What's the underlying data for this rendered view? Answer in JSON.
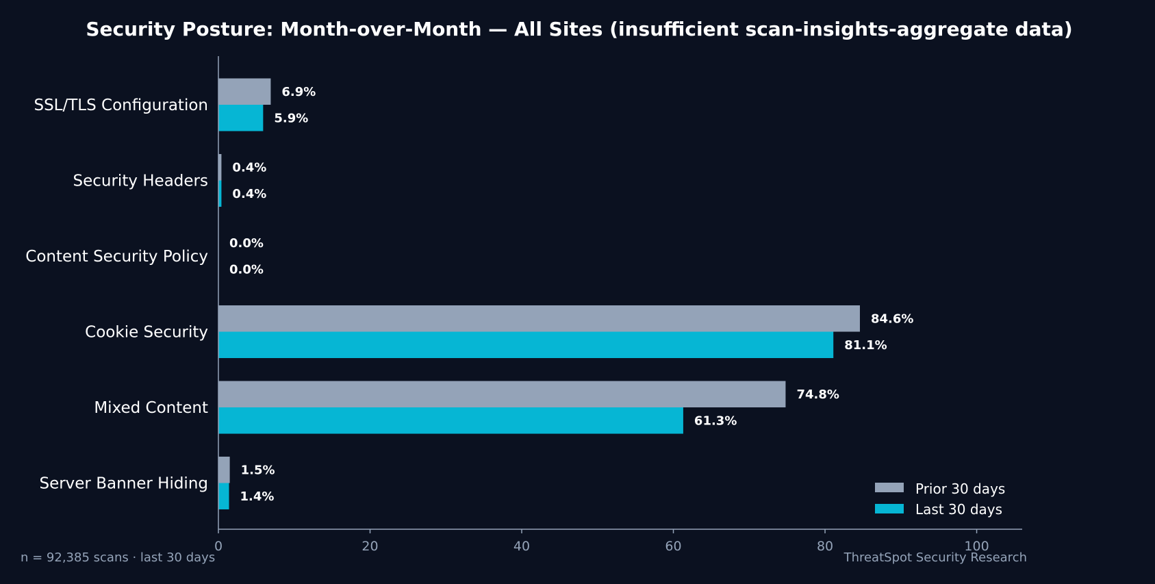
{
  "chart_data": {
    "type": "bar",
    "orientation": "horizontal",
    "title": "Security Posture: Month-over-Month — All Sites (insufficient scan-insights-aggregate data)",
    "categories": [
      "SSL/TLS Configuration",
      "Security Headers",
      "Content Security Policy",
      "Cookie Security",
      "Mixed Content",
      "Server Banner Hiding"
    ],
    "series": [
      {
        "name": "Prior 30 days",
        "color": "#94a3b8",
        "values": [
          6.9,
          0.4,
          0.0,
          84.6,
          74.8,
          1.5
        ],
        "labels": [
          "6.9%",
          "0.4%",
          "0.0%",
          "84.6%",
          "74.8%",
          "1.5%"
        ]
      },
      {
        "name": "Last 30 days",
        "color": "#06b6d4",
        "values": [
          5.9,
          0.4,
          0.0,
          81.1,
          61.3,
          1.4
        ],
        "labels": [
          "5.9%",
          "0.4%",
          "0.0%",
          "81.1%",
          "61.3%",
          "1.4%"
        ]
      }
    ],
    "xlim": [
      0,
      106
    ],
    "xticks": [
      "0",
      "20",
      "40",
      "60",
      "80",
      "100"
    ],
    "xtick_values": [
      0,
      20,
      40,
      60,
      80,
      100
    ],
    "xlabel": "",
    "ylabel": "",
    "grid": false,
    "legend_position": "bottom-right"
  },
  "footer": {
    "left": "n = 92,385 scans · last 30 days",
    "right": "ThreatSpot Security Research"
  },
  "colors": {
    "background": "#0b1120",
    "axis": "#94a3b8"
  }
}
